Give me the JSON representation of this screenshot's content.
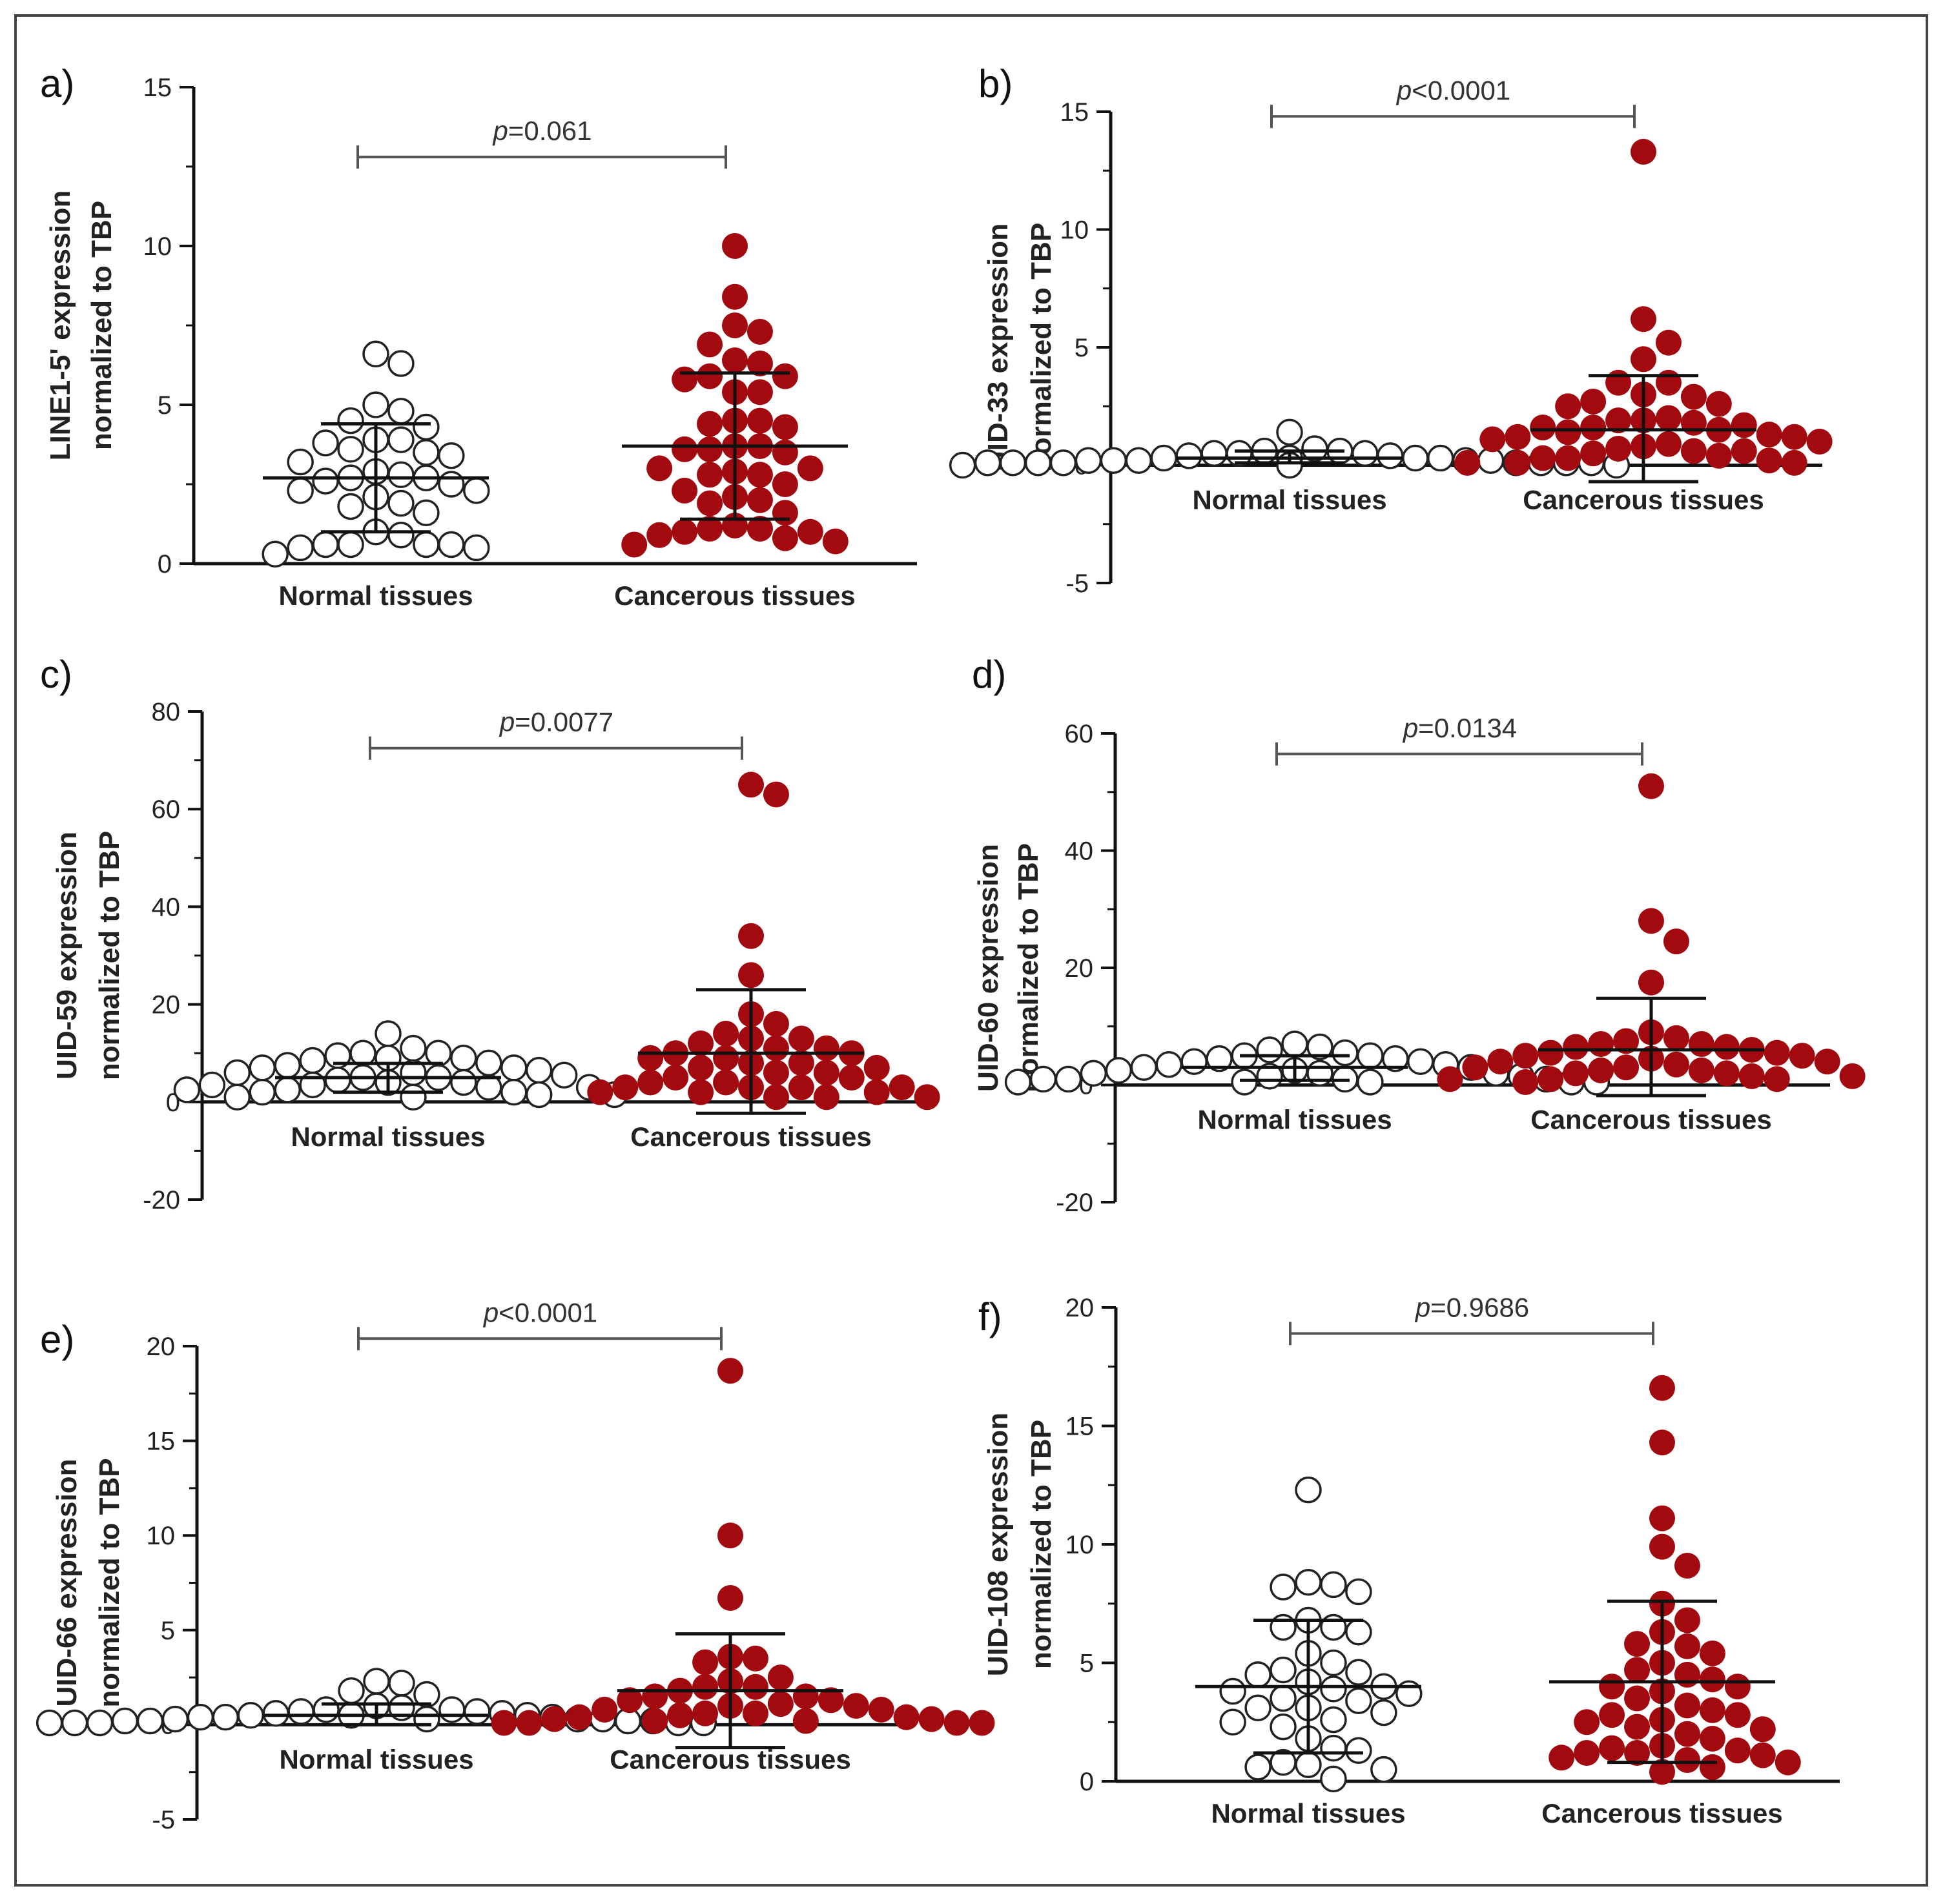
{
  "colors": {
    "normal_fill": "#ffffff",
    "normal_stroke": "#222222",
    "cancer_fill": "#a30a0f",
    "axis": "#111111",
    "bracket": "#555555"
  },
  "chart_data": [
    {
      "type": "scatter",
      "panel": "a)",
      "ylabel_line1": "LINE1-5' expression",
      "ylabel_line2": "normalized to TBP",
      "categories": [
        "Normal tissues",
        "Cancerous tissues"
      ],
      "ylim": [
        0,
        15
      ],
      "yticks": [
        0,
        5,
        10,
        15
      ],
      "p_prefix": "p",
      "p_text": "=0.061",
      "series": [
        {
          "name": "Normal tissues",
          "values": [
            6.6,
            6.3,
            4.8,
            5.0,
            4.3,
            4.5,
            3.9,
            3.9,
            3.8,
            3.6,
            3.5,
            3.4,
            3.2,
            2.9,
            2.8,
            2.7,
            2.7,
            2.6,
            2.5,
            2.3,
            2.3,
            2.1,
            1.9,
            1.8,
            1.6,
            1.0,
            0.9,
            0.6,
            0.6,
            0.6,
            0.5,
            0.5,
            0.6,
            0.3
          ],
          "mean": 2.7,
          "sd_low": 1.0,
          "sd_high": 4.4
        },
        {
          "name": "Cancerous tissues",
          "values": [
            10.0,
            8.4,
            7.5,
            7.3,
            6.9,
            6.4,
            6.3,
            5.9,
            5.9,
            5.8,
            5.4,
            5.4,
            4.5,
            4.5,
            4.4,
            4.3,
            3.7,
            3.7,
            3.6,
            3.6,
            3.5,
            3.0,
            3.0,
            2.9,
            2.8,
            2.8,
            2.5,
            2.3,
            2.1,
            2.0,
            1.9,
            1.6,
            1.2,
            1.1,
            1.1,
            1.0,
            1.0,
            0.9,
            0.8,
            0.7,
            0.6
          ],
          "mean": 3.7,
          "sd_low": 1.4,
          "sd_high": 6.0
        }
      ]
    },
    {
      "type": "scatter",
      "panel": "b)",
      "ylabel_line1": "UID-33 expression",
      "ylabel_line2": "normalized to TBP",
      "categories": [
        "Normal tissues",
        "Cancerous tissues"
      ],
      "ylim": [
        -5,
        15
      ],
      "yticks": [
        -5,
        0,
        5,
        10,
        15
      ],
      "p_prefix": "p",
      "p_text": "<0.0001",
      "series": [
        {
          "name": "Normal tissues",
          "values": [
            1.4,
            0.7,
            0.6,
            0.6,
            0.5,
            0.5,
            0.5,
            0.4,
            0.4,
            0.3,
            0.3,
            0.3,
            0.3,
            0.2,
            0.2,
            0.2,
            0.2,
            0.2,
            0.1,
            0.1,
            0.1,
            0.1,
            0.1,
            0.1,
            0.1,
            0.1,
            0.0,
            0.0,
            0.0,
            0.0
          ],
          "mean": 0.3,
          "sd_low": 0.1,
          "sd_high": 0.6
        },
        {
          "name": "Cancerous tissues",
          "values": [
            13.3,
            6.2,
            5.2,
            4.5,
            3.5,
            3.5,
            3.0,
            2.9,
            2.7,
            2.6,
            2.5,
            2.0,
            1.9,
            1.9,
            1.8,
            1.7,
            1.6,
            1.6,
            1.5,
            1.4,
            1.3,
            1.2,
            1.2,
            1.1,
            1.0,
            0.9,
            0.8,
            0.7,
            0.6,
            0.6,
            0.5,
            0.4,
            0.3,
            0.3,
            0.2,
            0.1,
            0.1,
            0.1
          ],
          "mean": 1.5,
          "sd_low": -0.7,
          "sd_high": 3.8
        }
      ]
    },
    {
      "type": "scatter",
      "panel": "c)",
      "ylabel_line1": "UID-59 expression",
      "ylabel_line2": "normalized to TBP",
      "categories": [
        "Normal tissues",
        "Cancerous tissues"
      ],
      "ylim": [
        -20,
        80
      ],
      "yticks": [
        -20,
        0,
        20,
        40,
        60,
        80
      ],
      "p_prefix": "p",
      "p_text": "=0.0077",
      "series": [
        {
          "name": "Normal tissues",
          "values": [
            14,
            11,
            10,
            10,
            9.5,
            9,
            9,
            8.5,
            8,
            7.5,
            7,
            7,
            6.5,
            6,
            6,
            5.5,
            5,
            5,
            4.5,
            4,
            4,
            3.5,
            3.5,
            3,
            3,
            2.5,
            2.5,
            2,
            2,
            1.5,
            1.5,
            1,
            1
          ],
          "mean": 5.0,
          "sd_low": 2.0,
          "sd_high": 7.9
        },
        {
          "name": "Cancerous tissues",
          "values": [
            65,
            63,
            34,
            26,
            18,
            16,
            14,
            13,
            13,
            12,
            11,
            11,
            10,
            10,
            9,
            9,
            8,
            8,
            7,
            7,
            6,
            6,
            5,
            5,
            4,
            4,
            3,
            3,
            3,
            3,
            2,
            2,
            2,
            1,
            1,
            1
          ],
          "mean": 10.0,
          "sd_low": -2.3,
          "sd_high": 23.0
        }
      ]
    },
    {
      "type": "scatter",
      "panel": "d)",
      "ylabel_line1": "UID-60 expression",
      "ylabel_line2": "normalized to TBP",
      "categories": [
        "Normal tissues",
        "Cancerous tissues"
      ],
      "ylim": [
        -20,
        60
      ],
      "yticks": [
        -20,
        0,
        20,
        40,
        60
      ],
      "p_prefix": "p",
      "p_text": "=0.0134",
      "series": [
        {
          "name": "Normal tissues",
          "values": [
            7,
            6.5,
            6,
            5.5,
            5,
            5,
            4.5,
            4.5,
            4,
            4,
            3.5,
            3.5,
            3,
            3,
            2.5,
            2.5,
            2,
            2,
            2,
            1.5,
            1.5,
            1,
            1,
            1,
            1,
            0.5,
            0.5,
            0.5,
            0.5,
            0.5
          ],
          "mean": 3.0,
          "sd_low": 0.8,
          "sd_high": 5.0
        },
        {
          "name": "Cancerous tissues",
          "values": [
            51,
            28,
            24.5,
            17.5,
            9,
            8,
            7.5,
            7,
            7,
            6.5,
            6.5,
            6,
            5.5,
            5.5,
            5,
            5,
            4.5,
            4,
            4,
            3.5,
            3,
            3,
            2.5,
            2.5,
            2,
            2,
            1.5,
            1.5,
            1,
            1,
            1,
            0.5
          ],
          "mean": 6.0,
          "sd_low": -1.8,
          "sd_high": 14.8
        }
      ]
    },
    {
      "type": "scatter",
      "panel": "e)",
      "ylabel_line1": "UID-66 expression",
      "ylabel_line2": "normalized to TBP",
      "categories": [
        "Normal tissues",
        "Cancerous tissues"
      ],
      "ylim": [
        -5,
        20
      ],
      "yticks": [
        -5,
        0,
        5,
        10,
        15,
        20
      ],
      "p_prefix": "p",
      "p_text": "<0.0001",
      "series": [
        {
          "name": "Normal tissues",
          "values": [
            2.3,
            2.2,
            1.8,
            1.6,
            1.0,
            0.9,
            0.8,
            0.8,
            0.7,
            0.7,
            0.6,
            0.6,
            0.5,
            0.5,
            0.5,
            0.4,
            0.4,
            0.4,
            0.3,
            0.3,
            0.3,
            0.3,
            0.2,
            0.2,
            0.2,
            0.2,
            0.1,
            0.1,
            0.1,
            0.1,
            0.1
          ],
          "mean": 0.5,
          "sd_low": 0.0,
          "sd_high": 1.1
        },
        {
          "name": "Cancerous tissues",
          "values": [
            18.7,
            10.0,
            6.7,
            3.6,
            3.5,
            3.3,
            2.5,
            2.3,
            2.0,
            2.0,
            1.8,
            1.5,
            1.5,
            1.3,
            1.3,
            1.1,
            1.0,
            1.0,
            0.8,
            0.8,
            0.6,
            0.6,
            0.5,
            0.4,
            0.4,
            0.3,
            0.3,
            0.2,
            0.2,
            0.1,
            0.1,
            0.1,
            0.1
          ],
          "mean": 1.8,
          "sd_low": -1.2,
          "sd_high": 4.8
        }
      ]
    },
    {
      "type": "scatter",
      "panel": "f)",
      "ylabel_line1": "UID-108 expression",
      "ylabel_line2": "normalized to TBP",
      "categories": [
        "Normal tissues",
        "Cancerous tissues"
      ],
      "ylim": [
        0,
        20
      ],
      "yticks": [
        0,
        5,
        10,
        15,
        20
      ],
      "p_prefix": "p",
      "p_text": "=0.9686",
      "series": [
        {
          "name": "Normal tissues",
          "values": [
            12.3,
            8.4,
            8.3,
            8.2,
            8.0,
            6.8,
            6.5,
            6.5,
            6.3,
            5.4,
            5.0,
            4.7,
            4.6,
            4.5,
            4.2,
            4.0,
            3.9,
            3.8,
            3.7,
            3.5,
            3.4,
            3.1,
            3.1,
            2.9,
            2.6,
            2.5,
            2.3,
            1.8,
            1.4,
            1.3,
            0.8,
            0.7,
            0.6,
            0.5,
            0.1
          ],
          "mean": 4.0,
          "sd_low": 1.2,
          "sd_high": 6.8
        },
        {
          "name": "Cancerous tissues",
          "values": [
            16.6,
            14.3,
            11.1,
            9.9,
            9.1,
            7.5,
            6.8,
            6.3,
            5.8,
            5.7,
            5.4,
            5.0,
            4.7,
            4.5,
            4.3,
            4.0,
            4.0,
            3.8,
            3.5,
            3.2,
            3.0,
            2.8,
            2.8,
            2.6,
            2.5,
            2.3,
            2.2,
            2.0,
            1.8,
            1.5,
            1.4,
            1.3,
            1.2,
            1.2,
            1.1,
            1.0,
            0.9,
            0.8,
            0.6,
            0.4
          ],
          "mean": 4.2,
          "sd_low": 0.8,
          "sd_high": 7.6
        }
      ]
    }
  ]
}
